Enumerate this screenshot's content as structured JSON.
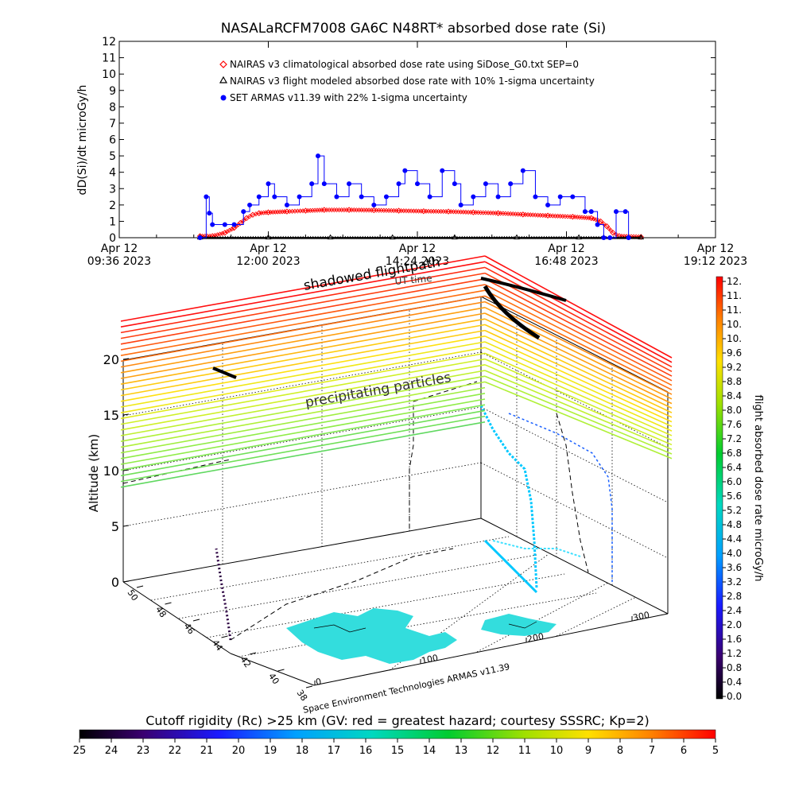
{
  "title": "NASALaRCFM7008   GA6C N48RT* absorbed dose rate (Si)",
  "chart_data": [
    {
      "type": "line",
      "ylabel": "dD(Si)/dt microGy/h",
      "xlabel": "",
      "ylim": [
        0,
        12
      ],
      "y_ticks": [
        "0",
        "1",
        "2",
        "3",
        "4",
        "5",
        "6",
        "7",
        "8",
        "9",
        "10",
        "11",
        "12"
      ],
      "x_ticks": [
        {
          "line1": "Apr 12",
          "line2": "09:36 2023"
        },
        {
          "line1": "Apr 12",
          "line2": "12:00 2023"
        },
        {
          "line1": "Apr 12",
          "line2": "14:24 2023"
        },
        {
          "line1": "Apr 12",
          "line2": "16:48 2023"
        },
        {
          "line1": "Apr 12",
          "line2": "19:12 2023"
        }
      ],
      "legend_placement": "top-center",
      "series": [
        {
          "name": "NAIRAS v3 climatological absorbed dose rate using SiDose_G0.txt SEP=0",
          "color": "#ff0000",
          "marker": "diamond",
          "points": [
            [
              10.9,
              0.1
            ],
            [
              11.1,
              0.1
            ],
            [
              11.3,
              0.3
            ],
            [
              11.45,
              0.6
            ],
            [
              11.55,
              0.9
            ],
            [
              11.65,
              1.2
            ],
            [
              11.75,
              1.4
            ],
            [
              11.85,
              1.5
            ],
            [
              12.0,
              1.55
            ],
            [
              12.3,
              1.6
            ],
            [
              12.6,
              1.65
            ],
            [
              12.9,
              1.7
            ],
            [
              13.3,
              1.7
            ],
            [
              13.7,
              1.68
            ],
            [
              14.1,
              1.65
            ],
            [
              14.5,
              1.62
            ],
            [
              14.9,
              1.6
            ],
            [
              15.3,
              1.55
            ],
            [
              15.7,
              1.5
            ],
            [
              16.1,
              1.42
            ],
            [
              16.5,
              1.35
            ],
            [
              16.9,
              1.28
            ],
            [
              17.2,
              1.2
            ],
            [
              17.35,
              1.0
            ],
            [
              17.45,
              0.7
            ],
            [
              17.55,
              0.3
            ],
            [
              17.65,
              0.1
            ],
            [
              18.0,
              0.05
            ]
          ]
        },
        {
          "name": "NAIRAS v3 flight modeled absorbed dose rate with 10% 1-sigma uncertainty",
          "color": "#000000",
          "marker": "triangle",
          "points": [
            [
              10.9,
              0.02
            ],
            [
              12.0,
              0.02
            ],
            [
              13.0,
              0.02
            ],
            [
              14.0,
              0.02
            ],
            [
              15.0,
              0.02
            ],
            [
              16.0,
              0.02
            ],
            [
              17.0,
              0.02
            ],
            [
              18.0,
              0.02
            ]
          ]
        },
        {
          "name": "SET ARMAS v11.39 with 22% 1-sigma uncertainty",
          "color": "#0000ff",
          "marker": "circle",
          "points": [
            [
              10.9,
              0.0
            ],
            [
              11.0,
              2.5
            ],
            [
              11.05,
              1.5
            ],
            [
              11.1,
              0.8
            ],
            [
              11.3,
              0.8
            ],
            [
              11.45,
              0.8
            ],
            [
              11.6,
              1.6
            ],
            [
              11.7,
              2.0
            ],
            [
              11.85,
              2.5
            ],
            [
              12.0,
              3.3
            ],
            [
              12.1,
              2.5
            ],
            [
              12.3,
              2.0
            ],
            [
              12.5,
              2.5
            ],
            [
              12.7,
              3.3
            ],
            [
              12.8,
              5.0
            ],
            [
              12.9,
              3.3
            ],
            [
              13.1,
              2.5
            ],
            [
              13.3,
              3.3
            ],
            [
              13.5,
              2.5
            ],
            [
              13.7,
              2.0
            ],
            [
              13.9,
              2.5
            ],
            [
              14.1,
              3.3
            ],
            [
              14.2,
              4.1
            ],
            [
              14.4,
              3.3
            ],
            [
              14.6,
              2.5
            ],
            [
              14.8,
              4.1
            ],
            [
              15.0,
              3.3
            ],
            [
              15.1,
              2.0
            ],
            [
              15.3,
              2.5
            ],
            [
              15.5,
              3.3
            ],
            [
              15.7,
              2.5
            ],
            [
              15.9,
              3.3
            ],
            [
              16.1,
              4.1
            ],
            [
              16.3,
              2.5
            ],
            [
              16.5,
              2.0
            ],
            [
              16.7,
              2.5
            ],
            [
              16.9,
              2.5
            ],
            [
              17.1,
              1.6
            ],
            [
              17.2,
              1.6
            ],
            [
              17.3,
              0.8
            ],
            [
              17.4,
              0.0
            ],
            [
              17.5,
              0.0
            ],
            [
              17.6,
              1.6
            ],
            [
              17.75,
              1.6
            ],
            [
              17.8,
              0.0
            ]
          ]
        }
      ]
    },
    {
      "type": "scatter",
      "subtype": "3d",
      "zlabel": "Altitude (km)",
      "z_ticks": [
        "0",
        "5",
        "10",
        "15",
        "20"
      ],
      "lat_ticks": [
        "50",
        "48",
        "46",
        "44",
        "42",
        "40",
        "38"
      ],
      "lon_ticks": [
        "0",
        "100",
        "200",
        "300"
      ],
      "annotations": [
        "shadowed flightpath",
        "UT time",
        "precipitating particles",
        "Space Environment Technologies ARMAS v11.39"
      ]
    },
    {
      "type": "heatmap",
      "name": "colorbar-right",
      "label": "flight absorbed dose rate microGy/h",
      "ticks": [
        "0.0",
        "0.4",
        "0.8",
        "1.2",
        "1.6",
        "2.0",
        "2.4",
        "2.8",
        "3.2",
        "3.6",
        "4.0",
        "4.4",
        "4.8",
        "5.2",
        "5.6",
        "6.0",
        "6.4",
        "6.8",
        "7.2",
        "7.6",
        "8.0",
        "8.4",
        "8.8",
        "9.2",
        "9.6",
        "10.",
        "10.",
        "11.",
        "11.",
        "12."
      ]
    },
    {
      "type": "heatmap",
      "name": "colorbar-bottom",
      "label": "Cutoff rigidity (Rc) >25 km (GV: red = greatest hazard; courtesy SSSRC; Kp=2)",
      "ticks": [
        "25",
        "24",
        "23",
        "22",
        "21",
        "20",
        "19",
        "18",
        "17",
        "16",
        "15",
        "14",
        "13",
        "12",
        "11",
        "10",
        "9",
        "8",
        "7",
        "6",
        "5"
      ]
    }
  ]
}
